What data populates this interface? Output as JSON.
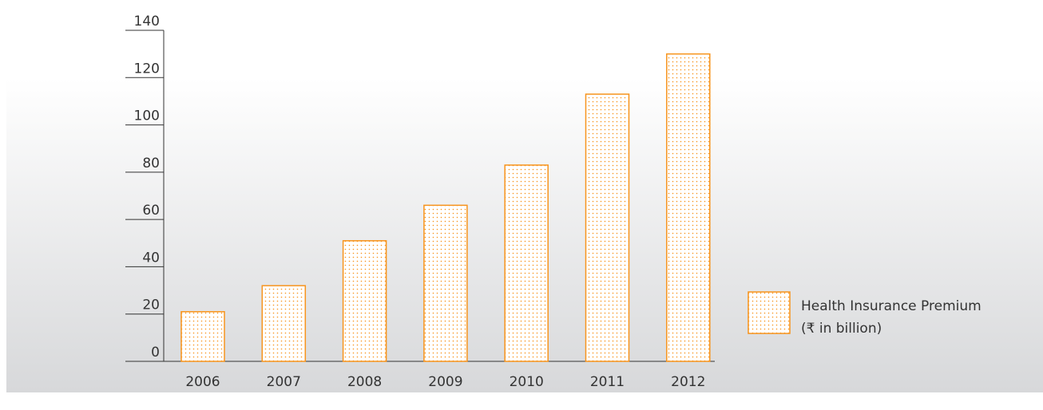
{
  "chart_data": {
    "type": "bar",
    "categories": [
      "2006",
      "2007",
      "2008",
      "2009",
      "2010",
      "2011",
      "2012"
    ],
    "series": [
      {
        "name": "Health Insurance Premium (₹ in billion)",
        "values": [
          21,
          32,
          51,
          66,
          83,
          113,
          130
        ]
      }
    ],
    "ylim": [
      0,
      140
    ],
    "yticks": [
      "0",
      "20",
      "40",
      "60",
      "80",
      "100",
      "120",
      "140"
    ],
    "grid": false,
    "legend": {
      "position": "right",
      "lines": [
        "Health Insurance Premium",
        "(₹ in billion)"
      ]
    },
    "colors": {
      "bar_stroke": "#f7941d",
      "bar_dots": "#f7941d",
      "axis": "#333333",
      "background_top": "#ffffff",
      "background_bottom": "#d7d8da"
    }
  }
}
